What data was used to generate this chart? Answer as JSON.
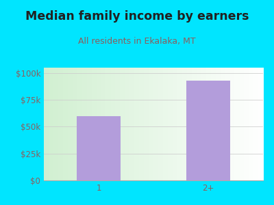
{
  "title": "Median family income by earners",
  "subtitle": "All residents in Ekalaka, MT",
  "categories": [
    "1",
    "2+"
  ],
  "values": [
    60000,
    93000
  ],
  "bar_color": "#b39ddb",
  "bg_color": "#00e5ff",
  "plot_bg_colors": [
    "#d4edda",
    "#eaf5ea",
    "#f0faf0",
    "#f8fcf8",
    "#ffffff"
  ],
  "title_color": "#212121",
  "subtitle_color": "#8b5e5e",
  "axis_label_color": "#8b6060",
  "ytick_labels": [
    "$0",
    "$25k",
    "$50k",
    "$75k",
    "$100k"
  ],
  "ytick_values": [
    0,
    25000,
    50000,
    75000,
    100000
  ],
  "ylim": [
    0,
    105000
  ],
  "title_fontsize": 12.5,
  "subtitle_fontsize": 9,
  "tick_fontsize": 8.5,
  "bar_width": 0.4
}
